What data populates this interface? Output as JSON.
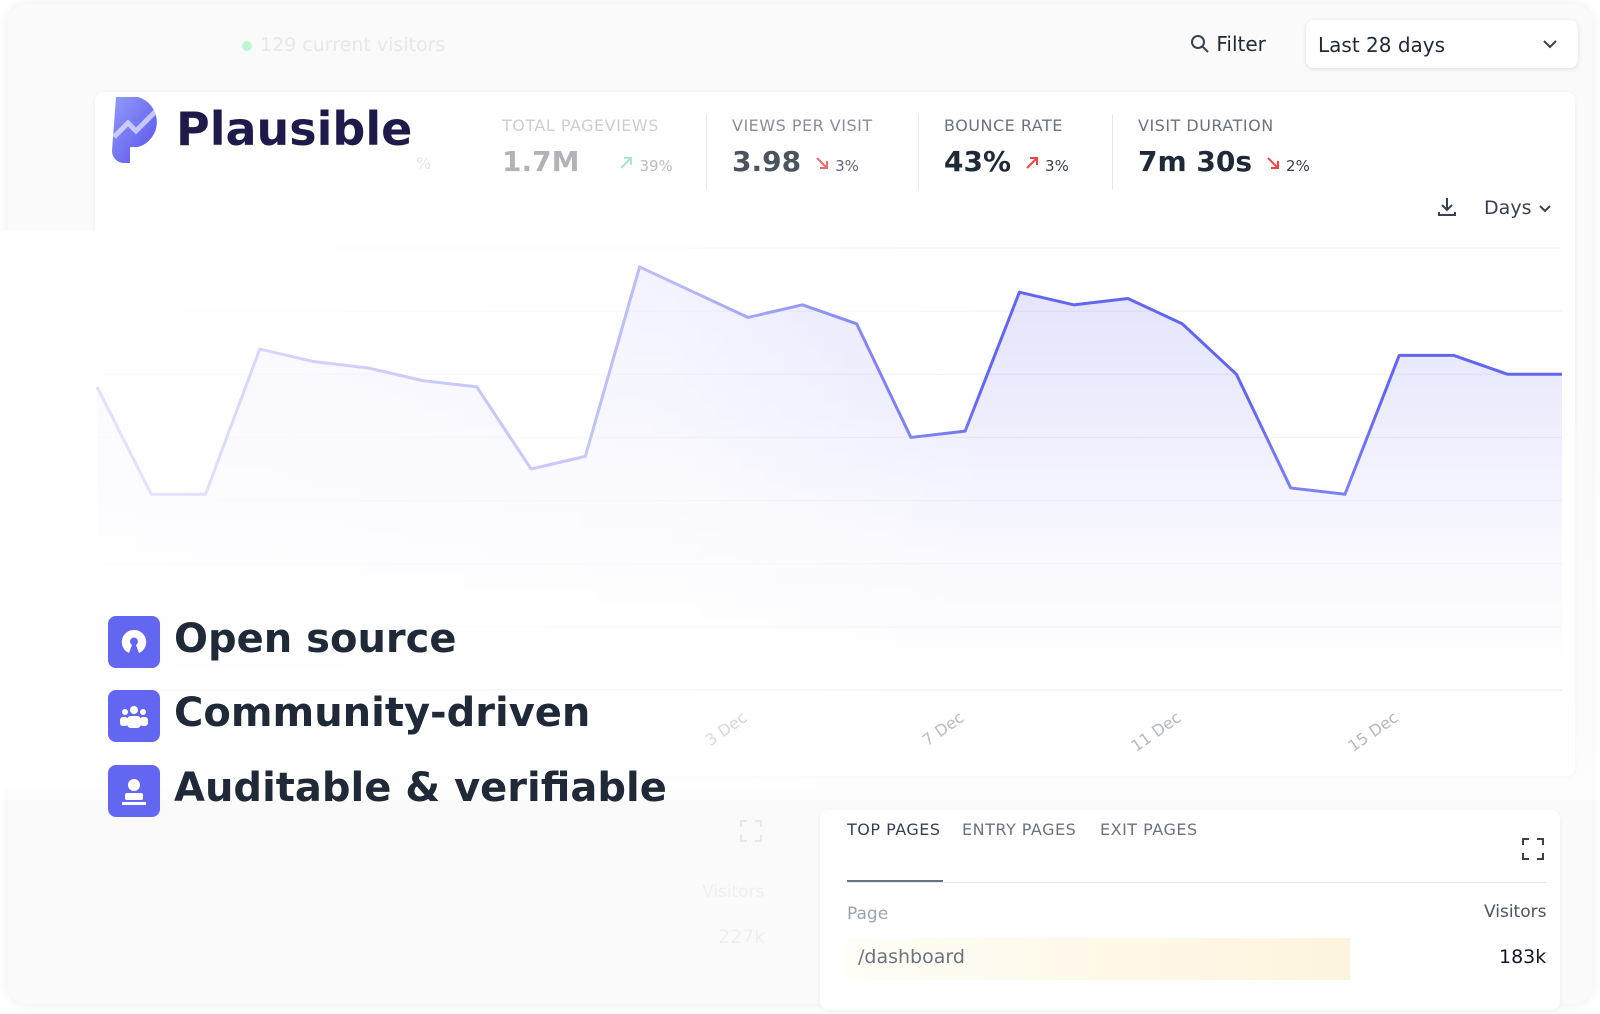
{
  "header": {
    "current_visitors": "129 current visitors",
    "filter": "Filter",
    "period": "Last 28 days"
  },
  "brand": "Plausible",
  "metrics_fragment": "%",
  "metrics": [
    {
      "label": "TOTAL PAGEVIEWS",
      "value": "1.7M",
      "change": "39%",
      "direction": "up"
    },
    {
      "label": "VIEWS PER VISIT",
      "value": "3.98",
      "change": "3%",
      "direction": "down"
    },
    {
      "label": "BOUNCE RATE",
      "value": "43%",
      "change": "3%",
      "direction": "up"
    },
    {
      "label": "VISIT DURATION",
      "value": "7m 30s",
      "change": "2%",
      "direction": "down"
    }
  ],
  "chart": {
    "type": "line",
    "interval": "Days",
    "color": "#6366f1",
    "ylim": [
      0,
      7
    ],
    "categories": [
      null,
      null,
      null,
      null,
      null,
      null,
      null,
      null,
      null,
      null,
      null,
      null,
      "3 Dec",
      null,
      null,
      null,
      "7 Dec",
      null,
      null,
      null,
      "11 Dec",
      null,
      null,
      null,
      "15 Dec",
      null,
      null,
      null
    ],
    "values": [
      4.8,
      3.1,
      3.1,
      5.4,
      5.2,
      5.1,
      4.9,
      4.8,
      3.5,
      3.7,
      6.7,
      6.3,
      5.9,
      6.1,
      5.8,
      4.0,
      4.1,
      6.3,
      6.1,
      6.2,
      5.8,
      5.0,
      3.2,
      3.1,
      5.3,
      5.3,
      5.0,
      5.0
    ]
  },
  "features": [
    "Open source",
    "Community-driven",
    "Auditable & verifiable"
  ],
  "left_panel": {
    "column": "Visitors",
    "value": "227k"
  },
  "pages_panel": {
    "tabs": [
      "TOP PAGES",
      "ENTRY PAGES",
      "EXIT PAGES"
    ],
    "columns": [
      "Page",
      "Visitors"
    ],
    "rows": [
      [
        "/dashboard",
        "183k"
      ]
    ]
  }
}
